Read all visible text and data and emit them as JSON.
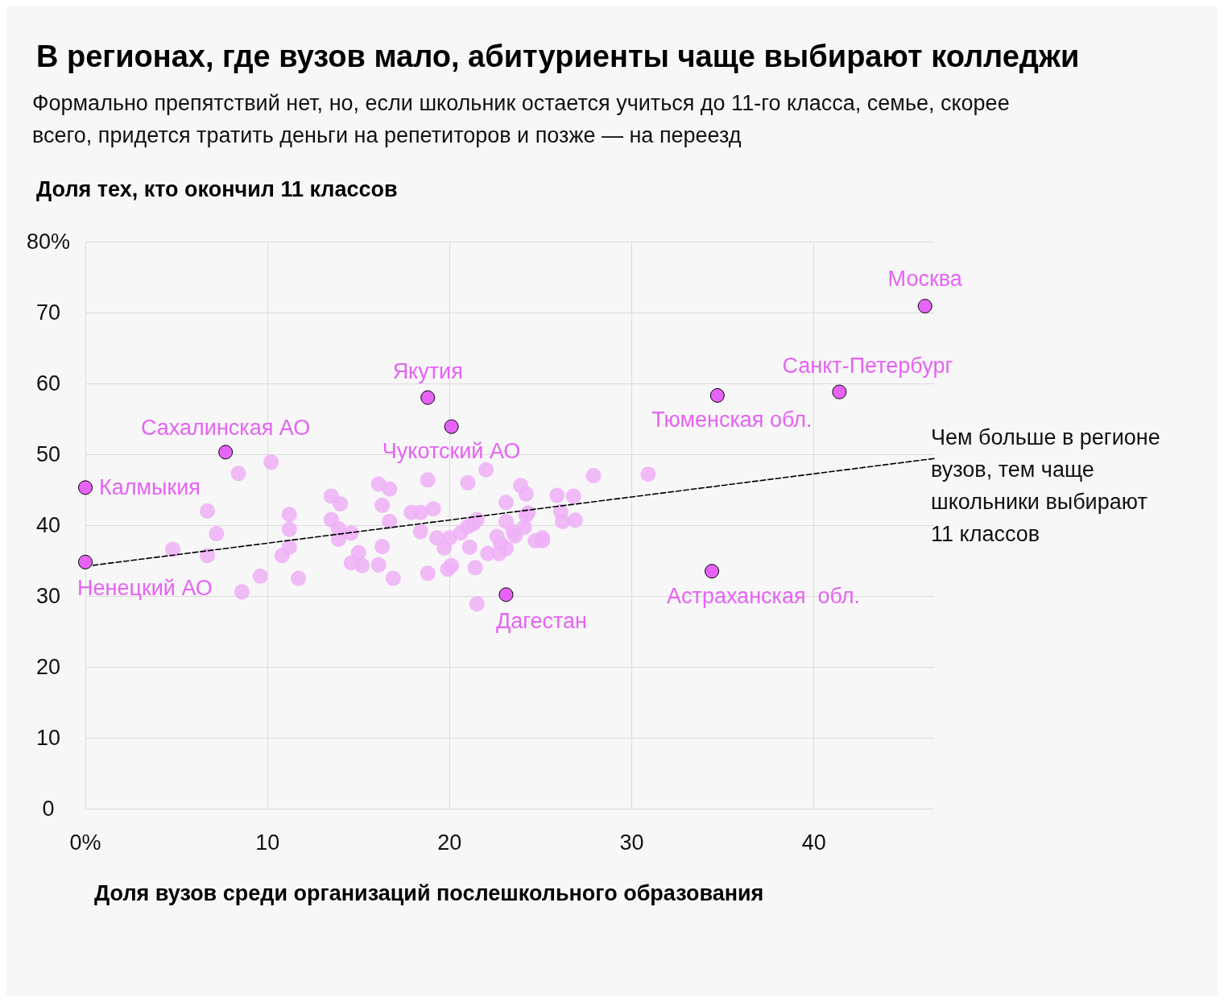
{
  "chart_data": {
    "type": "scatter",
    "title": "В регионах, где вузов мало, абитуриенты чаще выбирают колледжи",
    "subtitle": "Формально препятствий нет, но, если школьник остается учиться до 11-го класса, семье, скорее всего, придется тратить деньги на репетиторов и позже — на переезд",
    "ylabel": "Доля тех, кто окончил 11 классов",
    "xlabel": "Доля вузов среди организаций послешкольного образования",
    "xlim": [
      0,
      46.6
    ],
    "ylim": [
      0,
      80
    ],
    "xticks": [
      {
        "value": 0,
        "label": "0%"
      },
      10,
      20,
      30,
      40
    ],
    "yticks": [
      0,
      10,
      20,
      30,
      40,
      50,
      60,
      70,
      {
        "value": 80,
        "label": "80%"
      }
    ],
    "grid": true,
    "marker": "circle",
    "annotations": [
      {
        "text": "Чем больше в регионе вузов, тем чаще школьники выбирают 11 классов",
        "x": 46.6,
        "y": 49.4
      }
    ],
    "series": [
      {
        "color": "#eeaff7",
        "x": [
          10.2,
          8.4,
          6.7,
          7.2,
          4.8,
          6.7,
          9.6,
          8.6,
          11.2,
          11.2,
          11.2,
          10.8,
          11.7,
          13.5,
          14.0,
          13.5,
          13.9,
          13.9,
          14.6,
          15.0,
          14.6,
          15.2,
          16.1,
          16.7,
          16.3,
          16.7,
          16.3,
          16.1,
          16.9,
          18.8,
          17.9,
          18.4,
          19.1,
          18.4,
          19.3,
          19.7,
          20.0,
          18.8,
          19.9,
          20.1,
          20.6,
          21.0,
          21.3,
          21.5,
          21.0,
          22.0,
          21.1,
          21.4,
          21.5,
          22.1,
          22.6,
          22.7,
          22.8,
          23.1,
          23.1,
          23.1,
          23.5,
          23.6,
          23.9,
          24.2,
          24.1,
          24.3,
          24.2,
          24.7,
          25.1,
          25.1,
          25.9,
          26.1,
          26.2,
          26.8,
          26.9,
          27.9,
          30.9
        ],
        "values": [
          48.9,
          47.3,
          42.0,
          38.8,
          36.6,
          35.7,
          32.8,
          30.6,
          41.5,
          39.4,
          36.9,
          35.7,
          32.5,
          44.1,
          43.0,
          40.8,
          39.5,
          38.0,
          38.9,
          36.1,
          34.7,
          34.3,
          45.8,
          45.1,
          42.8,
          40.5,
          37.0,
          34.4,
          32.5,
          46.4,
          41.8,
          41.8,
          42.3,
          39.1,
          38.2,
          36.8,
          38.2,
          33.2,
          33.8,
          34.3,
          38.9,
          39.8,
          40.2,
          40.8,
          46.0,
          47.8,
          36.9,
          34.0,
          28.9,
          36.0,
          38.4,
          36.0,
          37.4,
          43.2,
          40.5,
          36.7,
          39.1,
          38.5,
          45.6,
          44.4,
          39.7,
          41.7,
          41.4,
          37.8,
          38.2,
          37.8,
          44.2,
          41.9,
          40.5,
          44.1,
          40.7,
          47.0,
          47.2
        ]
      },
      {
        "color": "#e663f5",
        "x": [
          0,
          0,
          7.7,
          18.8,
          20.1,
          23.1,
          34.7,
          41.4,
          46.1,
          34.4
        ],
        "values": [
          45.3,
          34.8,
          50.3,
          58.0,
          53.9,
          30.2,
          58.3,
          58.8,
          70.9,
          33.5
        ],
        "value_labels": [
          "Калмыкия",
          "Ненецкий АО",
          "Сахалинская АО",
          "Якутия",
          "Чукотский АО",
          "Дагестан",
          "Тюменская обл.",
          "Санкт-Петербург",
          "Москва",
          "Астраханская  обл."
        ]
      },
      {
        "type": "line",
        "color": "#000000",
        "line_style": "dashed",
        "marker": "none",
        "x": [
          0,
          46.6
        ],
        "values": [
          34.2,
          49.4
        ]
      }
    ]
  }
}
